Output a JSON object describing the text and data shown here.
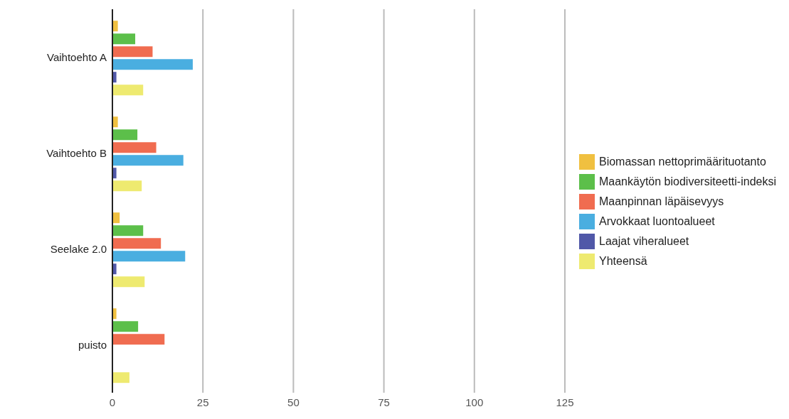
{
  "chart_data": {
    "type": "bar",
    "orientation": "horizontal",
    "categories": [
      "Vaihtoehto A",
      "Vaihtoehto B",
      "Seelake 2.0",
      "puisto"
    ],
    "series": [
      {
        "name": "Biomassan nettoprimäärituotanto",
        "color": "#f0c040",
        "values": [
          1.5,
          1.5,
          2.0,
          1.1
        ]
      },
      {
        "name": "Maankäytön biodiversiteetti-indeksi",
        "color": "#5cbf4a",
        "values": [
          6.3,
          6.9,
          8.5,
          7.1
        ]
      },
      {
        "name": "Maanpinnan läpäisevyys",
        "color": "#f06c50",
        "values": [
          11.1,
          12.1,
          13.4,
          14.4
        ]
      },
      {
        "name": "Arvokkaat luontoalueet",
        "color": "#4aaee0",
        "values": [
          22.2,
          19.6,
          20.1,
          null
        ]
      },
      {
        "name": "Laajat viheralueet",
        "color": "#5058a8",
        "values": [
          1.1,
          1.1,
          1.1,
          null
        ]
      },
      {
        "name": "Yhteensä",
        "color": "#eeea70",
        "values": [
          8.5,
          8.1,
          8.9,
          4.7
        ]
      }
    ],
    "xlim": [
      0,
      125
    ],
    "xticks": [
      0,
      25,
      50,
      75,
      100,
      125
    ],
    "grid": "x",
    "legend": "right"
  }
}
